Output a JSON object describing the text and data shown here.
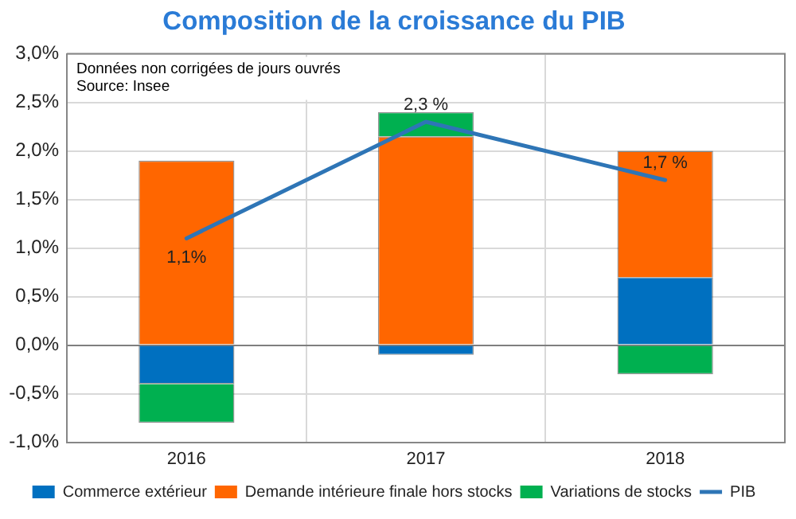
{
  "chart_data": {
    "type": "bar",
    "title": "Composition de la croissance du PIB",
    "categories": [
      "2016",
      "2017",
      "2018"
    ],
    "stacked": true,
    "series": [
      {
        "name": "Commerce extérieur",
        "color": "#0070c0",
        "values": [
          -0.4,
          -0.1,
          0.7
        ]
      },
      {
        "name": "Demande intérieure finale hors stocks",
        "color": "#ff6600",
        "values": [
          1.9,
          2.15,
          1.3
        ]
      },
      {
        "name": "Variations de stocks",
        "color": "#00b050",
        "values": [
          -0.4,
          0.25,
          -0.3
        ]
      },
      {
        "name": "PIB",
        "type": "line",
        "color": "#2e75b6",
        "values": [
          1.1,
          2.3,
          1.7
        ],
        "value_labels": [
          "1,1%",
          "2,3 %",
          "1,7 %"
        ]
      }
    ],
    "ylim": [
      -1,
      3
    ],
    "yticks": [
      {
        "value": -1,
        "label": "-1,0%"
      },
      {
        "value": -0.5,
        "label": "-0,5%"
      },
      {
        "value": 0,
        "label": "0,0%"
      },
      {
        "value": 0.5,
        "label": "0,5%"
      },
      {
        "value": 1,
        "label": "1,0%"
      },
      {
        "value": 1.5,
        "label": "1,5%"
      },
      {
        "value": 2,
        "label": "2,0%"
      },
      {
        "value": 2.5,
        "label": "2,5%"
      },
      {
        "value": 3,
        "label": "3,0%"
      }
    ],
    "grid": true,
    "legend": "bottom",
    "annotations": [
      "Données non corrigées de jours ouvrés",
      "Source: Insee"
    ]
  }
}
